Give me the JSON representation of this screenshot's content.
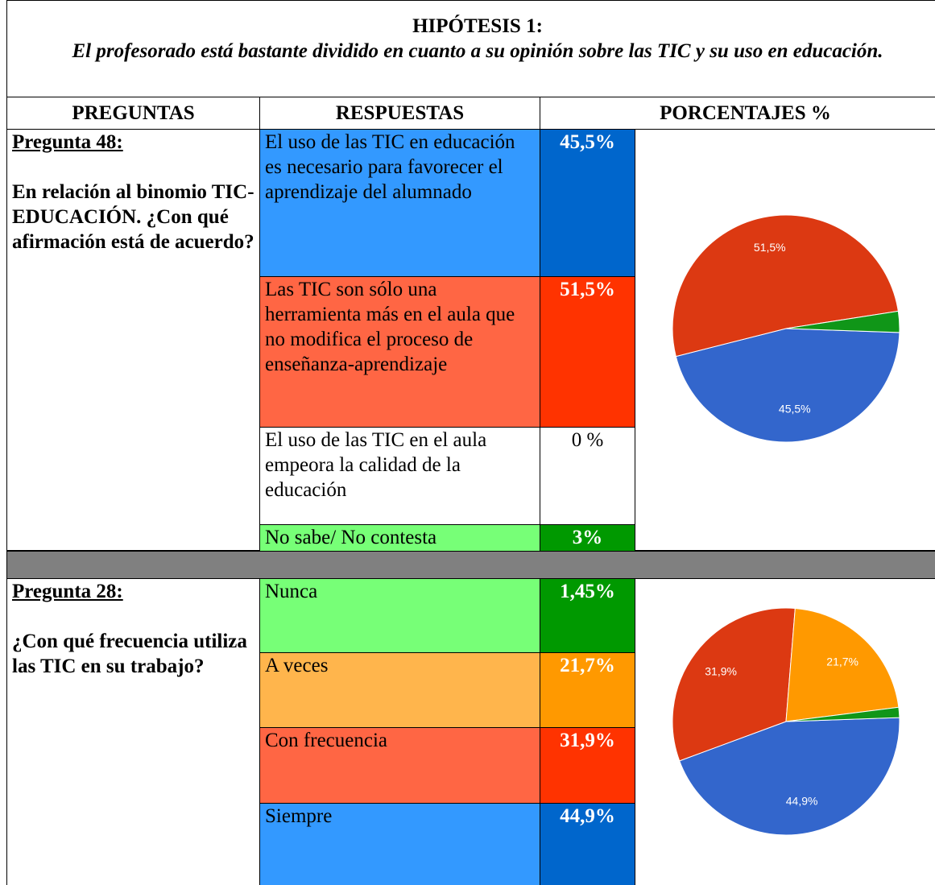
{
  "title": "HIPÓTESIS 1:",
  "subtitle": "El profesorado está bastante dividido en cuanto a su opinión sobre las TIC y su uso en educación.",
  "headers": [
    "PREGUNTAS",
    "RESPUESTAS",
    "PORCENTAJES %"
  ],
  "sections": [
    {
      "label": "Pregunta 48:",
      "question": "En relación al binomio TIC-EDUCACIÓN. ¿Con qué afirmación está de acuerdo?",
      "answers": [
        "El uso de las TIC en educación es necesario para favorecer el aprendizaje del alumnado",
        "Las TIC son sólo una herramienta más en el aula que no modifica el proceso de enseñanza-aprendizaje",
        "El uso de las TIC en el aula empeora la calidad de la educación",
        "No sabe/ No contesta"
      ],
      "percent_labels": [
        "45,5%",
        "51,5%",
        "0 %",
        "3%"
      ],
      "answer_colors": [
        "#3399ff",
        "#ff6644",
        "#ffffff",
        "#77ff77"
      ],
      "percent_colors": [
        "#0066cc",
        "#ff3300",
        "#ffffff",
        "#009900"
      ],
      "chart": {
        "type": "pie",
        "values": [
          45.5,
          51.5,
          0,
          3
        ],
        "value_labels": [
          "45,5%",
          "51,5%",
          null,
          null
        ],
        "colors": [
          "#3366cc",
          "#dc3912",
          "#ff9900",
          "#109618"
        ]
      }
    },
    {
      "label": "Pregunta 28:",
      "question": "¿Con qué frecuencia utiliza las TIC en su trabajo?",
      "answers": [
        "Nunca",
        "A veces",
        "Con frecuencia",
        "Siempre"
      ],
      "percent_labels": [
        "1,45%",
        "21,7%",
        "31,9%",
        "44,9%"
      ],
      "answer_colors": [
        "#77ff77",
        "#ffb54c",
        "#ff6644",
        "#3399ff"
      ],
      "percent_colors": [
        "#009900",
        "#ff9900",
        "#ff3300",
        "#0066cc"
      ],
      "chart": {
        "type": "pie",
        "values": [
          1.45,
          21.7,
          31.9,
          44.9
        ],
        "value_labels": [
          null,
          "21,7%",
          "31,9%",
          "44,9%"
        ],
        "colors": [
          "#109618",
          "#ff9900",
          "#dc3912",
          "#3366cc"
        ]
      }
    }
  ]
}
